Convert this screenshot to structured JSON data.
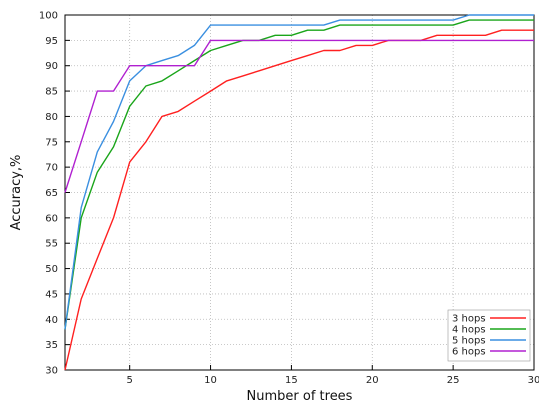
{
  "chart_data": {
    "type": "line",
    "title": "",
    "xlabel": "Number of trees",
    "ylabel": "Accuracy,%",
    "xlim": [
      1,
      30
    ],
    "ylim": [
      30,
      100
    ],
    "x_ticks": [
      5,
      10,
      15,
      20,
      25,
      30
    ],
    "y_ticks": [
      30,
      35,
      40,
      45,
      50,
      55,
      60,
      65,
      70,
      75,
      80,
      85,
      90,
      95,
      100
    ],
    "grid": true,
    "legend_position": "bottom-right",
    "x": [
      1,
      2,
      3,
      4,
      5,
      6,
      7,
      8,
      9,
      10,
      11,
      12,
      13,
      14,
      15,
      16,
      17,
      18,
      19,
      20,
      21,
      22,
      23,
      24,
      25,
      26,
      27,
      28,
      29,
      30
    ],
    "series": [
      {
        "name": "3 hops",
        "color": "#ff2020",
        "values": [
          30,
          44,
          52,
          60,
          71,
          75,
          80,
          81,
          83,
          85,
          87,
          88,
          89,
          90,
          91,
          92,
          93,
          93,
          94,
          94,
          95,
          95,
          95,
          96,
          96,
          96,
          96,
          97,
          97,
          97
        ]
      },
      {
        "name": "4 hops",
        "color": "#1aa51a",
        "values": [
          38,
          60,
          69,
          74,
          82,
          86,
          87,
          89,
          91,
          93,
          94,
          95,
          95,
          96,
          96,
          97,
          97,
          98,
          98,
          98,
          98,
          98,
          98,
          98,
          98,
          99,
          99,
          99,
          99,
          99
        ]
      },
      {
        "name": "5 hops",
        "color": "#3a8fe0",
        "values": [
          38,
          62,
          73,
          79,
          87,
          90,
          91,
          92,
          94,
          98,
          98,
          98,
          98,
          98,
          98,
          98,
          98,
          99,
          99,
          99,
          99,
          99,
          99,
          99,
          99,
          100,
          100,
          100,
          100,
          100
        ]
      },
      {
        "name": "6 hops",
        "color": "#b020d0",
        "values": [
          65,
          75,
          85,
          85,
          90,
          90,
          90,
          90,
          90,
          95,
          95,
          95,
          95,
          95,
          95,
          95,
          95,
          95,
          95,
          95,
          95,
          95,
          95,
          95,
          95,
          95,
          95,
          95,
          95,
          95
        ]
      }
    ]
  }
}
